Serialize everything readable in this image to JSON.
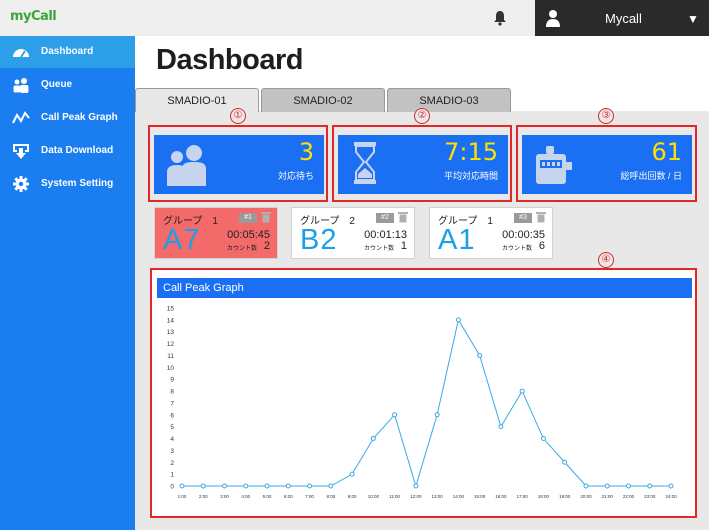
{
  "header": {
    "logo": "myCall",
    "user_name": "Mycall",
    "caret": "▼"
  },
  "sidebar": {
    "items": [
      {
        "label": "Dashboard",
        "icon": "dashboard-gauge-icon",
        "active": true
      },
      {
        "label": "Queue",
        "icon": "people-queue-icon",
        "active": false
      },
      {
        "label": "Call Peak Graph",
        "icon": "line-graph-icon",
        "active": false
      },
      {
        "label": "Data Download",
        "icon": "download-icon",
        "active": false
      },
      {
        "label": "System Setting",
        "icon": "gear-icon",
        "active": false
      }
    ]
  },
  "main": {
    "title": "Dashboard",
    "tabs": [
      {
        "label": "SMADIO-01",
        "active": true
      },
      {
        "label": "SMADIO-02",
        "active": false
      },
      {
        "label": "SMADIO-03",
        "active": false
      }
    ],
    "markers": [
      "①",
      "②",
      "③",
      "④"
    ],
    "stats": [
      {
        "value": "3",
        "label": "対応待ち",
        "icon": "people-icon"
      },
      {
        "value": "7:15",
        "label": "平均対応時間",
        "icon": "hourglass-icon"
      },
      {
        "value": "61",
        "label": "総呼出回数 / 日",
        "icon": "counter-icon"
      }
    ],
    "queues": [
      {
        "group": "グループ　1",
        "badge": "#1",
        "code": "A7",
        "time": "00:05:45",
        "count_label": "カウント数",
        "count": "2",
        "alert": true
      },
      {
        "group": "グループ　2",
        "badge": "#2",
        "code": "B2",
        "time": "00:01:13",
        "count_label": "カウント数",
        "count": "1",
        "alert": false
      },
      {
        "group": "グループ　1",
        "badge": "#3",
        "code": "A1",
        "time": "00:00:35",
        "count_label": "カウント数",
        "count": "6",
        "alert": false
      }
    ]
  },
  "colors": {
    "sidebar": "#1b7ef0",
    "accent": "#1b6ff2",
    "highlight": "#ffe100",
    "alert": "#f26a6a",
    "frame": "#e02828",
    "line": "#3aa9e8"
  },
  "chart_data": {
    "type": "line",
    "title": "Call Peak Graph",
    "x": [
      "1:00",
      "2:00",
      "3:00",
      "4:00",
      "5:00",
      "6:00",
      "7:00",
      "8:00",
      "9:00",
      "10:00",
      "11:00",
      "12:00",
      "13:00",
      "14:00",
      "15:00",
      "16:00",
      "17:00",
      "18:00",
      "19:00",
      "20:00",
      "21:00",
      "22:00",
      "23:00",
      "24:00"
    ],
    "series": [
      {
        "values": [
          0,
          0,
          0,
          0,
          0,
          0,
          0,
          0,
          1,
          4,
          6,
          0,
          6,
          14,
          11,
          5,
          8,
          4,
          2,
          0,
          0,
          0,
          0,
          0
        ]
      }
    ],
    "ylim": [
      0,
      15
    ],
    "yticks": [
      0,
      1,
      2,
      3,
      4,
      5,
      6,
      7,
      8,
      9,
      10,
      11,
      12,
      13,
      14,
      15
    ],
    "grid": false
  }
}
